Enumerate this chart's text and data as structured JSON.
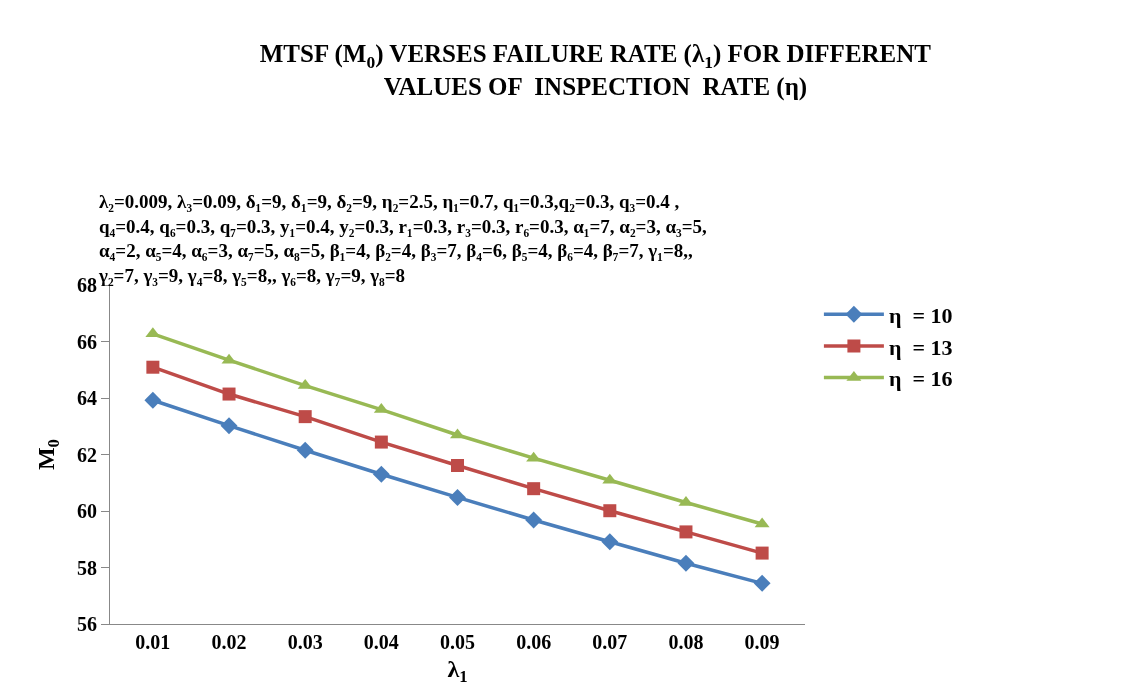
{
  "chart_data": {
    "type": "line",
    "title": "MTSF (M$_{0}$) VERSES FAILURE RATE (λ$_{1}$) FOR DIFFERENT\nVALUES OF  INSPECTION  RATE (η)",
    "subtitle": "λ₂=0.009, λ₃=0.09, δ₁=9, δ₁=9, δ₂=9, η₂=2.5, η₁=0.7, q₁=0.3,q₂=0.3, q₃=0.4 ,\nq₄=0.4, q₆=0.3, q₇=0.3, y₁=0.4, y₂=0.3, r₁=0.3, r₃=0.3, r₆=0.3, α₁=7, α₂=3, α₃=5,\nα₄=2, α₅=4, α₆=3, α₇=5, α₈=5, β₁=4, β₂=4, β₃=7, β₄=6, β₅=4, β₆=4, β₇=7, γ₁=8,,\nγ₂=7, γ₃=9, γ₄=8, γ₅=8,, γ₆=8, γ₇=9, γ₈=8",
    "xlabel": "λ$_{1}$",
    "ylabel": "M$_{0}$",
    "categories": [
      "0.01",
      "0.02",
      "0.03",
      "0.04",
      "0.05",
      "0.06",
      "0.07",
      "0.08",
      "0.09"
    ],
    "series": [
      {
        "name": "η  = 10",
        "color": "#4a7ebb",
        "marker": "diamond",
        "values": [
          63.92,
          63.02,
          62.15,
          61.3,
          60.48,
          59.68,
          58.91,
          58.15,
          57.44
        ]
      },
      {
        "name": "η  = 13",
        "color": "#be4b48",
        "marker": "square",
        "values": [
          65.09,
          64.14,
          63.34,
          62.44,
          61.61,
          60.79,
          60.01,
          59.26,
          58.51
        ]
      },
      {
        "name": "η  = 16",
        "color": "#98b954",
        "marker": "triangle",
        "values": [
          66.27,
          65.34,
          64.44,
          63.59,
          62.69,
          61.87,
          61.09,
          60.3,
          59.54
        ]
      }
    ],
    "ylim": [
      56,
      68
    ],
    "yticks": [
      56,
      58,
      60,
      62,
      64,
      66,
      68
    ],
    "legend": "right",
    "line_style": "solid"
  }
}
